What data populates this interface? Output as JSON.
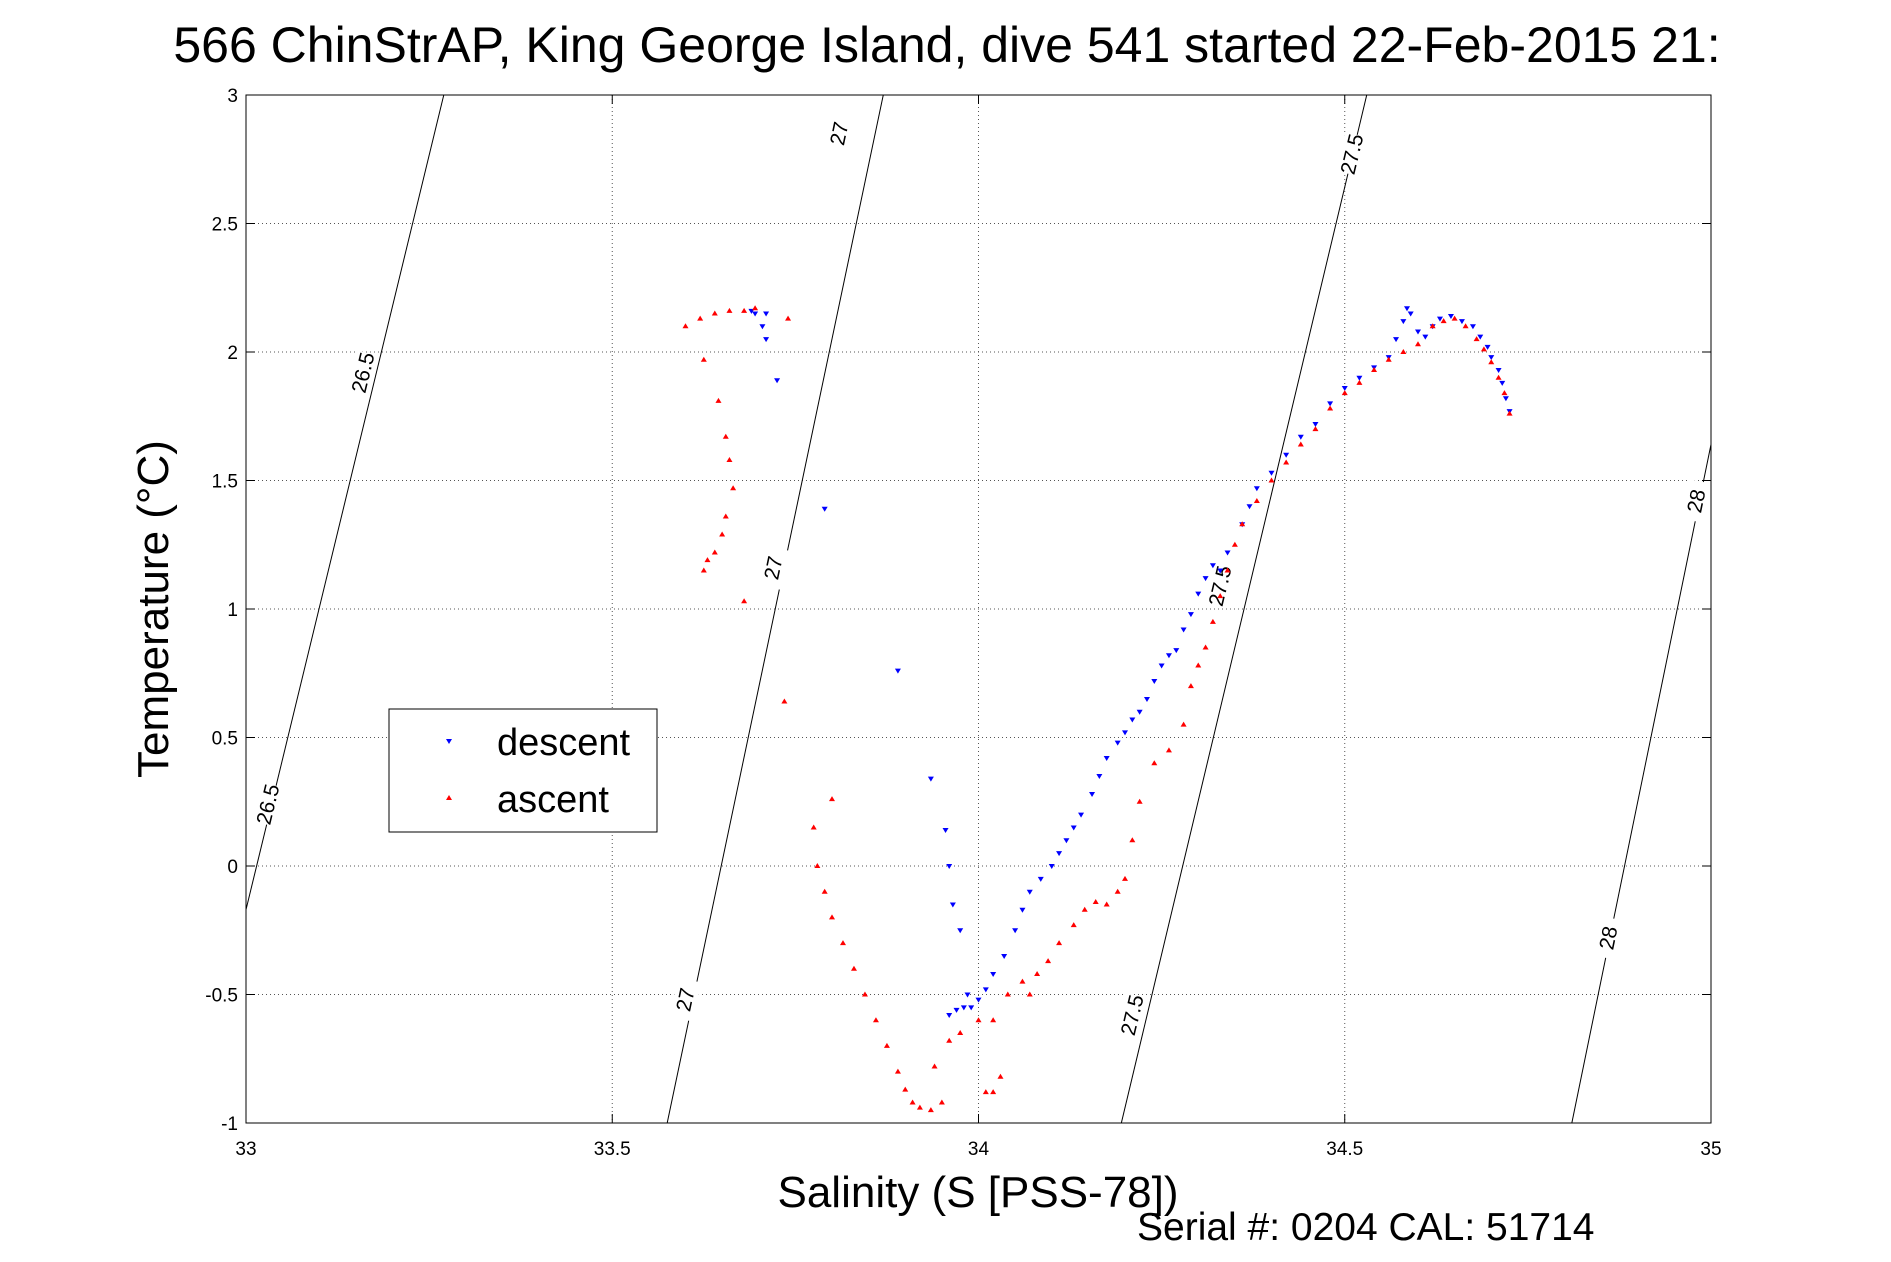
{
  "chart_data": {
    "type": "scatter",
    "title": "566 ChinStrAP, King George Island, dive 541 started 22-Feb-2015 21:",
    "xlabel": "Salinity (S [PSS-78])",
    "ylabel": "Temperature (°C)",
    "xlim": [
      33,
      35
    ],
    "ylim": [
      -1,
      3
    ],
    "x_ticks": [
      "33",
      "33.5",
      "34",
      "34.5",
      "35"
    ],
    "y_ticks": [
      "-1",
      "-0.5",
      "0",
      "0.5",
      "1",
      "1.5",
      "2",
      "2.5",
      "3"
    ],
    "grid": "dotted",
    "legend_placement": "center-left",
    "footer": "Serial #: 0204  CAL: 51714",
    "contours": [
      {
        "label": "26.5",
        "points": [
          [
            33.0,
            -0.17
          ],
          [
            33.27,
            3.0
          ]
        ],
        "label_at": [
          [
            33.16,
            1.92
          ],
          [
            33.03,
            0.24
          ]
        ]
      },
      {
        "label": "27",
        "points": [
          [
            33.575,
            -1.0
          ],
          [
            33.87,
            3.0
          ]
        ],
        "label_at": [
          [
            33.81,
            2.85
          ],
          [
            33.72,
            1.16
          ],
          [
            33.6,
            -0.52
          ]
        ]
      },
      {
        "label": "27.5",
        "points": [
          [
            34.195,
            -1.0
          ],
          [
            34.53,
            3.0
          ]
        ],
        "label_at": [
          [
            34.51,
            2.77
          ],
          [
            34.33,
            1.09
          ],
          [
            34.21,
            -0.58
          ]
        ]
      },
      {
        "label": "28",
        "points": [
          [
            34.81,
            -1.0
          ],
          [
            35.0,
            1.64
          ]
        ],
        "label_at": [
          [
            34.98,
            1.42
          ],
          [
            34.86,
            -0.28
          ]
        ]
      }
    ],
    "series": [
      {
        "name": "descent",
        "color": "#0000ff",
        "marker": "triangle-down",
        "points": [
          [
            33.69,
            2.16
          ],
          [
            33.695,
            2.15
          ],
          [
            33.705,
            2.1
          ],
          [
            33.71,
            2.15
          ],
          [
            33.71,
            2.05
          ],
          [
            33.725,
            1.89
          ],
          [
            33.79,
            1.39
          ],
          [
            33.89,
            0.76
          ],
          [
            33.935,
            0.34
          ],
          [
            33.955,
            0.14
          ],
          [
            33.96,
            0.0
          ],
          [
            33.965,
            -0.15
          ],
          [
            33.975,
            -0.25
          ],
          [
            33.985,
            -0.5
          ],
          [
            33.96,
            -0.58
          ],
          [
            33.97,
            -0.56
          ],
          [
            33.98,
            -0.55
          ],
          [
            33.99,
            -0.55
          ],
          [
            34.0,
            -0.52
          ],
          [
            34.01,
            -0.48
          ],
          [
            34.02,
            -0.42
          ],
          [
            34.035,
            -0.35
          ],
          [
            34.05,
            -0.25
          ],
          [
            34.06,
            -0.17
          ],
          [
            34.07,
            -0.1
          ],
          [
            34.085,
            -0.05
          ],
          [
            34.1,
            0.0
          ],
          [
            34.11,
            0.05
          ],
          [
            34.12,
            0.1
          ],
          [
            34.13,
            0.15
          ],
          [
            34.14,
            0.2
          ],
          [
            34.155,
            0.28
          ],
          [
            34.165,
            0.35
          ],
          [
            34.175,
            0.42
          ],
          [
            34.19,
            0.48
          ],
          [
            34.2,
            0.52
          ],
          [
            34.21,
            0.57
          ],
          [
            34.22,
            0.6
          ],
          [
            34.23,
            0.65
          ],
          [
            34.24,
            0.72
          ],
          [
            34.25,
            0.78
          ],
          [
            34.26,
            0.82
          ],
          [
            34.27,
            0.84
          ],
          [
            34.28,
            0.92
          ],
          [
            34.29,
            0.98
          ],
          [
            34.3,
            1.06
          ],
          [
            34.31,
            1.12
          ],
          [
            34.32,
            1.17
          ],
          [
            34.33,
            1.15
          ],
          [
            34.34,
            1.22
          ],
          [
            34.36,
            1.33
          ],
          [
            34.37,
            1.4
          ],
          [
            34.38,
            1.47
          ],
          [
            34.4,
            1.53
          ],
          [
            34.42,
            1.6
          ],
          [
            34.44,
            1.67
          ],
          [
            34.46,
            1.72
          ],
          [
            34.48,
            1.8
          ],
          [
            34.5,
            1.86
          ],
          [
            34.52,
            1.9
          ],
          [
            34.54,
            1.94
          ],
          [
            34.56,
            1.98
          ],
          [
            34.57,
            2.05
          ],
          [
            34.58,
            2.12
          ],
          [
            34.585,
            2.17
          ],
          [
            34.59,
            2.15
          ],
          [
            34.6,
            2.08
          ],
          [
            34.61,
            2.06
          ],
          [
            34.62,
            2.1
          ],
          [
            34.63,
            2.13
          ],
          [
            34.645,
            2.14
          ],
          [
            34.66,
            2.12
          ],
          [
            34.675,
            2.1
          ],
          [
            34.685,
            2.06
          ],
          [
            34.695,
            2.02
          ],
          [
            34.7,
            1.98
          ],
          [
            34.71,
            1.93
          ],
          [
            34.715,
            1.88
          ],
          [
            34.72,
            1.82
          ],
          [
            34.725,
            1.77
          ]
        ]
      },
      {
        "name": "ascent",
        "color": "#ff0000",
        "marker": "triangle-up",
        "points": [
          [
            33.6,
            2.1
          ],
          [
            33.62,
            2.13
          ],
          [
            33.64,
            2.15
          ],
          [
            33.66,
            2.16
          ],
          [
            33.68,
            2.16
          ],
          [
            33.695,
            2.17
          ],
          [
            33.74,
            2.13
          ],
          [
            33.625,
            1.97
          ],
          [
            33.645,
            1.81
          ],
          [
            33.655,
            1.67
          ],
          [
            33.66,
            1.58
          ],
          [
            33.665,
            1.47
          ],
          [
            33.655,
            1.36
          ],
          [
            33.65,
            1.29
          ],
          [
            33.64,
            1.22
          ],
          [
            33.63,
            1.19
          ],
          [
            33.625,
            1.15
          ],
          [
            33.68,
            1.03
          ],
          [
            33.735,
            0.64
          ],
          [
            33.8,
            0.26
          ],
          [
            33.775,
            0.15
          ],
          [
            33.78,
            0.0
          ],
          [
            33.79,
            -0.1
          ],
          [
            33.8,
            -0.2
          ],
          [
            33.815,
            -0.3
          ],
          [
            33.83,
            -0.4
          ],
          [
            33.845,
            -0.5
          ],
          [
            33.86,
            -0.6
          ],
          [
            33.875,
            -0.7
          ],
          [
            33.89,
            -0.8
          ],
          [
            33.9,
            -0.87
          ],
          [
            33.91,
            -0.92
          ],
          [
            33.92,
            -0.94
          ],
          [
            33.935,
            -0.95
          ],
          [
            33.95,
            -0.92
          ],
          [
            33.94,
            -0.78
          ],
          [
            33.96,
            -0.68
          ],
          [
            33.975,
            -0.65
          ],
          [
            34.0,
            -0.6
          ],
          [
            34.01,
            -0.88
          ],
          [
            34.02,
            -0.88
          ],
          [
            34.03,
            -0.82
          ],
          [
            34.02,
            -0.6
          ],
          [
            34.04,
            -0.5
          ],
          [
            34.06,
            -0.45
          ],
          [
            34.07,
            -0.5
          ],
          [
            34.08,
            -0.42
          ],
          [
            34.095,
            -0.37
          ],
          [
            34.11,
            -0.3
          ],
          [
            34.13,
            -0.23
          ],
          [
            34.145,
            -0.17
          ],
          [
            34.16,
            -0.14
          ],
          [
            34.175,
            -0.15
          ],
          [
            34.19,
            -0.1
          ],
          [
            34.2,
            -0.05
          ],
          [
            34.21,
            0.1
          ],
          [
            34.22,
            0.25
          ],
          [
            34.24,
            0.4
          ],
          [
            34.26,
            0.45
          ],
          [
            34.28,
            0.55
          ],
          [
            34.29,
            0.7
          ],
          [
            34.3,
            0.78
          ],
          [
            34.31,
            0.85
          ],
          [
            34.32,
            0.95
          ],
          [
            34.33,
            1.05
          ],
          [
            34.34,
            1.15
          ],
          [
            34.35,
            1.25
          ],
          [
            34.36,
            1.33
          ],
          [
            34.38,
            1.42
          ],
          [
            34.4,
            1.5
          ],
          [
            34.42,
            1.57
          ],
          [
            34.44,
            1.64
          ],
          [
            34.46,
            1.7
          ],
          [
            34.48,
            1.78
          ],
          [
            34.5,
            1.84
          ],
          [
            34.52,
            1.88
          ],
          [
            34.54,
            1.93
          ],
          [
            34.56,
            1.97
          ],
          [
            34.58,
            2.0
          ],
          [
            34.6,
            2.03
          ],
          [
            34.62,
            2.1
          ],
          [
            34.635,
            2.12
          ],
          [
            34.65,
            2.13
          ],
          [
            34.665,
            2.1
          ],
          [
            34.68,
            2.05
          ],
          [
            34.69,
            2.01
          ],
          [
            34.7,
            1.96
          ],
          [
            34.71,
            1.9
          ],
          [
            34.718,
            1.84
          ],
          [
            34.725,
            1.76
          ]
        ]
      }
    ]
  }
}
